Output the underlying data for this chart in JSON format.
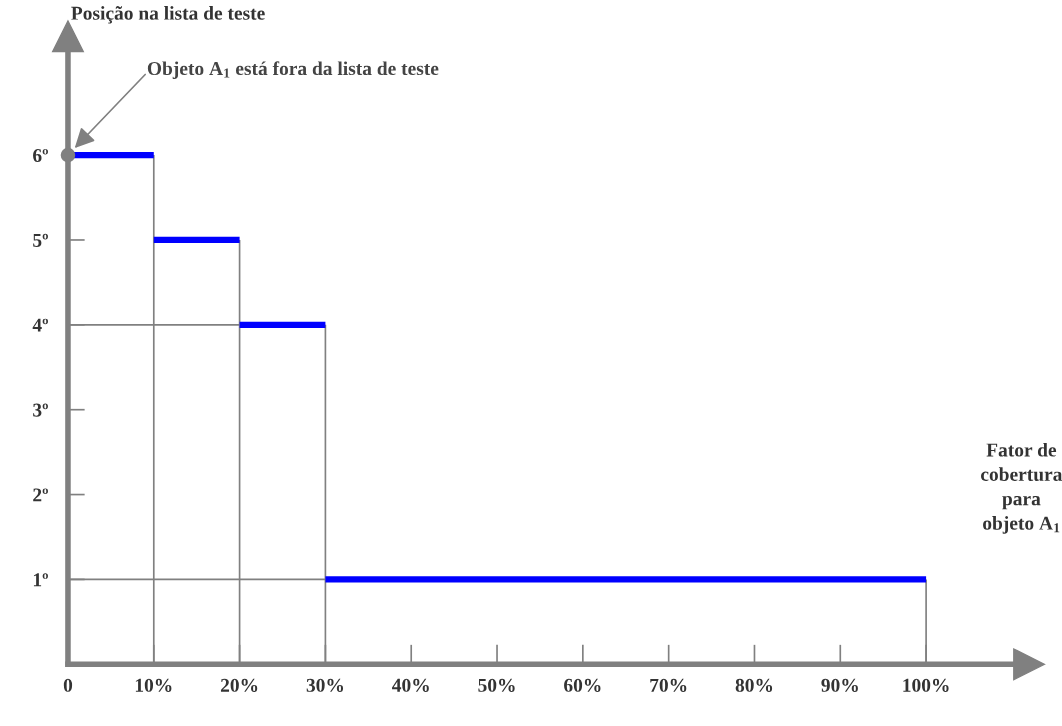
{
  "chart_data": {
    "type": "line",
    "xlabel": "Fator de cobertura para objeto A$_{1}$",
    "ylabel": "Posição na lista de teste",
    "annotations": [
      "Objeto A$_{1}$ está fora da lista de teste"
    ],
    "series": [
      {
        "color": "#0000ff",
        "x": [
          0,
          10
        ],
        "values": [
          6,
          6
        ],
        "errors": [
          null,
          [
            0,
            6
          ]
        ]
      },
      {
        "color": "#0000ff",
        "x": [
          10,
          20
        ],
        "values": [
          5,
          5
        ],
        "errors": [
          null,
          [
            0,
            5
          ]
        ]
      },
      {
        "color": "#0000ff",
        "x": [
          20,
          30
        ],
        "values": [
          4,
          4
        ],
        "errors": [
          null,
          [
            0,
            4
          ]
        ]
      },
      {
        "color": "#0000ff",
        "x": [
          30,
          100
        ],
        "values": [
          1,
          1
        ],
        "errors": [
          null,
          [
            0,
            1
          ]
        ]
      },
      {
        "color": "#808080",
        "x": [
          0,
          20
        ],
        "values": [
          4,
          4
        ]
      },
      {
        "color": "#808080",
        "x": [
          0,
          30
        ],
        "values": [
          1,
          1
        ]
      },
      {
        "type": "scatter",
        "color": "#808080",
        "x": [
          0
        ],
        "values": [
          6
        ],
        "marker": "circle"
      }
    ],
    "xlim": [
      0,
      112
    ],
    "ylim": [
      0,
      7.4
    ],
    "xticks": [
      {
        "value": 0,
        "label": "0"
      },
      {
        "value": 10,
        "label": "10%"
      },
      {
        "value": 20,
        "label": "20%"
      },
      {
        "value": 30,
        "label": "30%"
      },
      {
        "value": 40,
        "label": "40%"
      },
      {
        "value": 50,
        "label": "50%"
      },
      {
        "value": 60,
        "label": "60%"
      },
      {
        "value": 70,
        "label": "70%"
      },
      {
        "value": 80,
        "label": "80%"
      },
      {
        "value": 90,
        "label": "90%"
      },
      {
        "value": 100,
        "label": "100%"
      }
    ],
    "yticks": [
      {
        "value": 1,
        "label": "1º"
      },
      {
        "value": 2,
        "label": "2º"
      },
      {
        "value": 3,
        "label": "3º"
      },
      {
        "value": 4,
        "label": "4º"
      },
      {
        "value": 5,
        "label": "5º"
      },
      {
        "value": 6,
        "label": "6º"
      }
    ]
  }
}
